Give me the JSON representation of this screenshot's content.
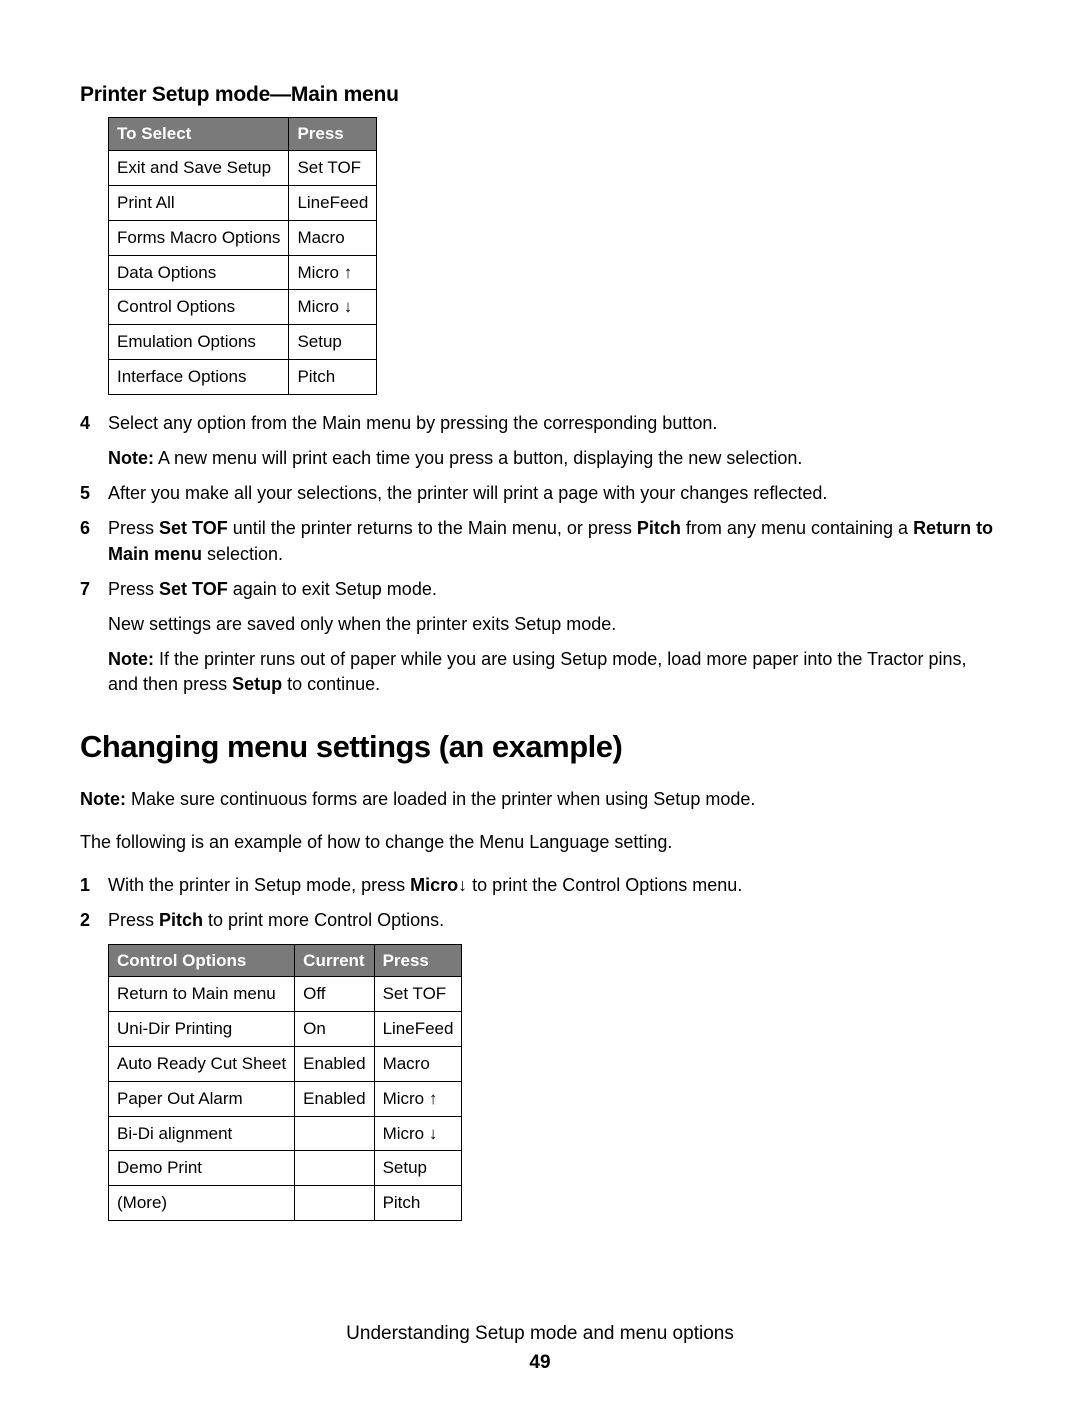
{
  "section_title": "Printer Setup mode—Main menu",
  "table1": {
    "headers": [
      "To Select",
      "Press"
    ],
    "rows": [
      [
        "Exit and Save Setup",
        "Set TOF"
      ],
      [
        "Print All",
        "LineFeed"
      ],
      [
        "Forms Macro Options",
        "Macro"
      ],
      [
        "Data Options",
        "Micro ↑"
      ],
      [
        "Control Options",
        "Micro ↓"
      ],
      [
        "Emulation Options",
        "Setup"
      ],
      [
        "Interface Options",
        "Pitch"
      ]
    ]
  },
  "steps1": {
    "4": {
      "p1": "Select any option from the Main menu by pressing the corresponding button.",
      "p2_pre": "Note:",
      "p2": " A new menu will print each time you press a button, displaying the new selection."
    },
    "5": "After you make all your selections, the printer will print a page with your changes reflected.",
    "6": {
      "t1": "Press ",
      "b1": "Set TOF",
      "t2": " until the printer returns to the Main menu, or press ",
      "b2": "Pitch",
      "t3": " from any menu containing a ",
      "b3": "Return to Main menu",
      "t4": " selection."
    },
    "7": {
      "t1": "Press ",
      "b1": "Set TOF",
      "t2": " again to exit Setup mode.",
      "p2": "New settings are saved only when the printer exits Setup mode.",
      "p3_pre": "Note:",
      "p3a": " If the printer runs out of paper while you are using Setup mode, load more paper into the Tractor pins, and then press ",
      "p3b": "Setup",
      "p3c": " to continue."
    }
  },
  "h2": "Changing menu settings (an example)",
  "para_note": {
    "pre": "Note:",
    "txt": " Make sure continuous forms are loaded in the printer when using Setup mode."
  },
  "para2": "The following is an example of how to change the Menu Language setting.",
  "steps2": {
    "1": {
      "t1": "With the printer in Setup mode, press ",
      "b1": "Micro",
      "arrow": " ↓",
      "t2": " to print the Control Options menu."
    },
    "2": {
      "t1": "Press ",
      "b1": "Pitch",
      "t2": " to print more Control Options."
    }
  },
  "table2": {
    "headers": [
      "Control Options",
      "Current",
      "Press"
    ],
    "rows": [
      [
        "Return to Main menu",
        "Off",
        "Set TOF"
      ],
      [
        "Uni-Dir Printing",
        "On",
        "LineFeed"
      ],
      [
        "Auto Ready Cut Sheet",
        "Enabled",
        "Macro"
      ],
      [
        "Paper Out Alarm",
        "Enabled",
        "Micro ↑"
      ],
      [
        "Bi-Di alignment",
        "",
        "Micro ↓"
      ],
      [
        "Demo Print",
        "",
        "Setup"
      ],
      [
        "(More)",
        "",
        "Pitch"
      ]
    ]
  },
  "footer": {
    "title": "Understanding Setup mode and menu options",
    "page": "49"
  }
}
